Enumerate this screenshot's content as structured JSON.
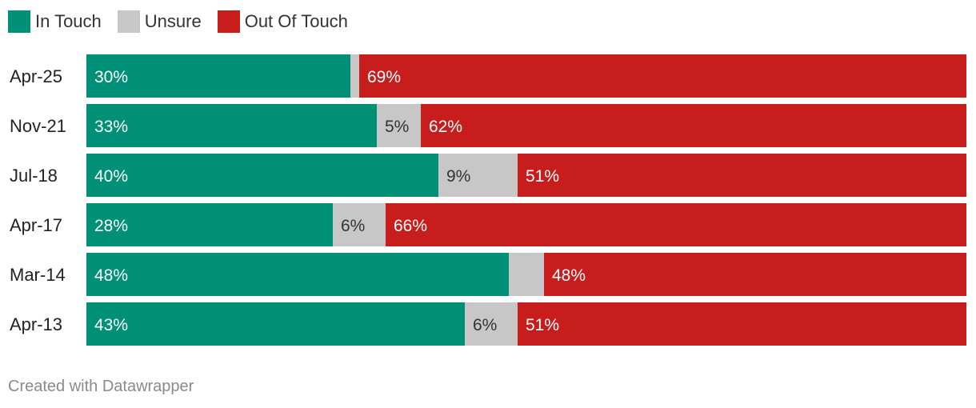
{
  "chart_data": {
    "type": "bar",
    "orientation": "horizontal",
    "stacked": true,
    "percent": true,
    "categories": [
      "Apr-25",
      "Nov-21",
      "Jul-18",
      "Apr-17",
      "Mar-14",
      "Apr-13"
    ],
    "series": [
      {
        "name": "In Touch",
        "color": "#009077",
        "values": [
          30,
          33,
          40,
          28,
          48,
          43
        ],
        "labels": [
          "30%",
          "33%",
          "40%",
          "28%",
          "48%",
          "43%"
        ]
      },
      {
        "name": "Unsure",
        "color": "#c7c7c7",
        "values": [
          1,
          5,
          9,
          6,
          4,
          6
        ],
        "labels": [
          "",
          "5%",
          "9%",
          "6%",
          "",
          "6%"
        ]
      },
      {
        "name": "Out Of Touch",
        "color": "#c71e1d",
        "values": [
          69,
          62,
          51,
          66,
          48,
          51
        ],
        "labels": [
          "69%",
          "62%",
          "51%",
          "66%",
          "48%",
          "51%"
        ]
      }
    ],
    "xlim": [
      0,
      100
    ],
    "legend_position": "top-left",
    "grid": false
  },
  "footer": "Created with Datawrapper"
}
